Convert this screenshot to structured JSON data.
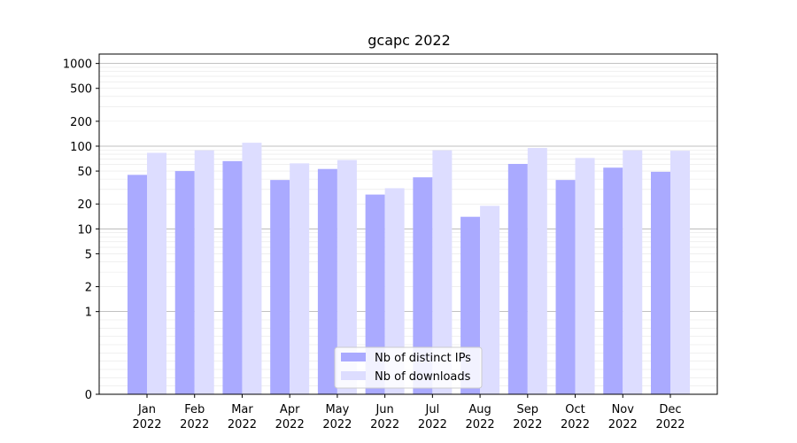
{
  "chart_data": {
    "type": "bar",
    "title": "gcapc 2022",
    "xlabel": "",
    "ylabel": "",
    "y_scale": "symlog",
    "ylim": [
      0,
      1300
    ],
    "y_ticks": [
      0,
      1,
      2,
      5,
      10,
      20,
      50,
      100,
      200,
      500,
      1000
    ],
    "y_tick_labels": [
      "0",
      "1",
      "2",
      "5",
      "10",
      "20",
      "50",
      "100",
      "200",
      "500",
      "1000"
    ],
    "categories": [
      "Jan\n2022",
      "Feb\n2022",
      "Mar\n2022",
      "Apr\n2022",
      "May\n2022",
      "Jun\n2022",
      "Jul\n2022",
      "Aug\n2022",
      "Sep\n2022",
      "Oct\n2022",
      "Nov\n2022",
      "Dec\n2022"
    ],
    "category_lines": [
      [
        "Jan",
        "2022"
      ],
      [
        "Feb",
        "2022"
      ],
      [
        "Mar",
        "2022"
      ],
      [
        "Apr",
        "2022"
      ],
      [
        "May",
        "2022"
      ],
      [
        "Jun",
        "2022"
      ],
      [
        "Jul",
        "2022"
      ],
      [
        "Aug",
        "2022"
      ],
      [
        "Sep",
        "2022"
      ],
      [
        "Oct",
        "2022"
      ],
      [
        "Nov",
        "2022"
      ],
      [
        "Dec",
        "2022"
      ]
    ],
    "series": [
      {
        "name": "Nb of distinct IPs",
        "color": "#aaaaff",
        "values": [
          45,
          50,
          66,
          39,
          53,
          26,
          42,
          14,
          61,
          39,
          55,
          49
        ]
      },
      {
        "name": "Nb of downloads",
        "color": "#ddddff",
        "values": [
          83,
          89,
          110,
          62,
          68,
          31,
          89,
          19,
          95,
          72,
          89,
          88
        ]
      }
    ],
    "grid": true,
    "legend_position": "lower-center"
  }
}
